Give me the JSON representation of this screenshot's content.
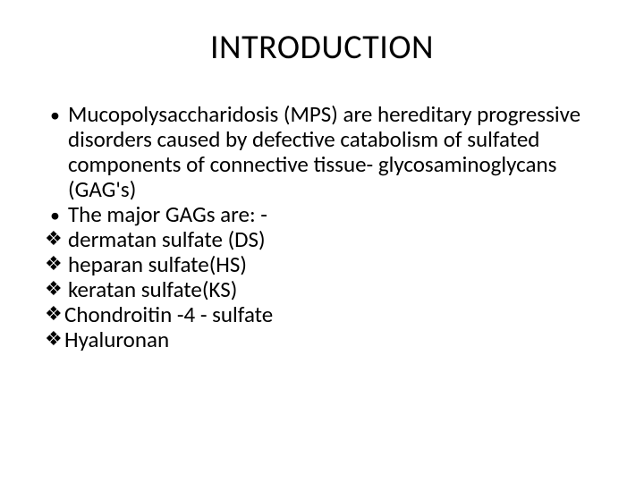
{
  "title": "INTRODUCTION",
  "bullets": [
    "Mucopolysaccharidosis (MPS) are hereditary progressive disorders caused by defective catabolism of sulfated components of connective tissue- glycosaminoglycans (GAG's)",
    "The major GAGs are: -"
  ],
  "diamonds": [
    " dermatan sulfate (DS)",
    " heparan sulfate(HS)",
    " keratan sulfate(KS)",
    "Chondroitin -4 - sulfate",
    "Hyaluronan"
  ],
  "style": {
    "background_color": "#ffffff",
    "text_color": "#000000",
    "font_family": "Calibri",
    "title_fontsize": 38,
    "body_fontsize": 25,
    "bullet_glyph": "•",
    "diamond_glyph": "❖",
    "slide_width": 720,
    "slide_height": 540
  }
}
